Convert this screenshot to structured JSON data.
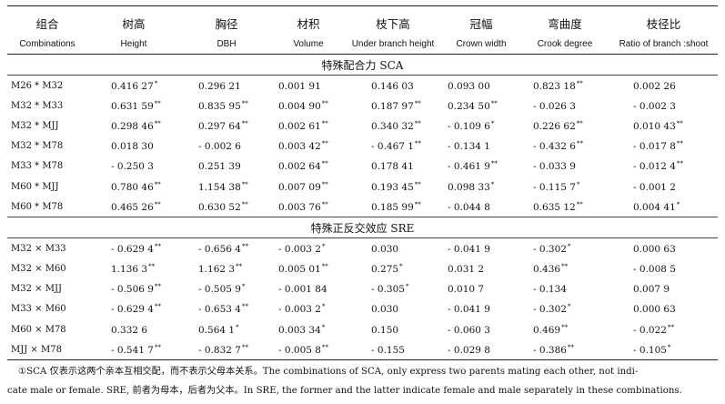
{
  "headers_zh": [
    "组合",
    "树高",
    "胸径",
    "材积",
    "枝下高",
    "冠幅",
    "弯曲度",
    "枝径比"
  ],
  "headers_en": [
    "Combinations",
    "Height",
    "DBH",
    "Volume",
    "Under branch height",
    "Crown width",
    "Crook degree",
    "Ratio of branch :shoot"
  ],
  "sca_title": "特殊配合力 SCA",
  "sre_title": "特殊正反交效应 SRE",
  "sca_rows": [
    {
      "label": "M26 * M32",
      "cells": [
        [
          "0.416 27",
          "*"
        ],
        [
          "0.296 21",
          ""
        ],
        [
          "0.001 91",
          ""
        ],
        [
          "0.146 03",
          ""
        ],
        [
          "0.093 00",
          ""
        ],
        [
          "0.823 18",
          "**"
        ],
        [
          "0.002 26",
          ""
        ]
      ]
    },
    {
      "label": "M32 * M33",
      "cells": [
        [
          "0.631 59",
          "**"
        ],
        [
          "0.835 95",
          "**"
        ],
        [
          "0.004 90",
          "**"
        ],
        [
          "0.187 97",
          "**"
        ],
        [
          "0.234 50",
          "**"
        ],
        [
          "- 0.026 3",
          ""
        ],
        [
          "- 0.002 3",
          ""
        ]
      ]
    },
    {
      "label": "M32 * MJJ",
      "cells": [
        [
          "0.298 46",
          "**"
        ],
        [
          "0.297 64",
          "**"
        ],
        [
          "0.002 61",
          "**"
        ],
        [
          "0.340 32",
          "**"
        ],
        [
          "- 0.109 6",
          "*"
        ],
        [
          "0.226 62",
          "**"
        ],
        [
          "0.010 43",
          "**"
        ]
      ]
    },
    {
      "label": "M32 * M78",
      "cells": [
        [
          "0.018 30",
          ""
        ],
        [
          "- 0.002 6",
          ""
        ],
        [
          "0.003 42",
          "**"
        ],
        [
          "- 0.467 1",
          "**"
        ],
        [
          "- 0.134 1",
          ""
        ],
        [
          "- 0.432 6",
          "**"
        ],
        [
          "- 0.017 8",
          "**"
        ]
      ]
    },
    {
      "label": "M33 * M78",
      "cells": [
        [
          "- 0.250 3",
          ""
        ],
        [
          "0.251 39",
          ""
        ],
        [
          "0.002 64",
          "**"
        ],
        [
          "0.178 41",
          ""
        ],
        [
          "- 0.461 9",
          "**"
        ],
        [
          "- 0.033 9",
          ""
        ],
        [
          "- 0.012 4",
          "**"
        ]
      ]
    },
    {
      "label": "M60 * MJJ",
      "cells": [
        [
          "0.780 46",
          "**"
        ],
        [
          "1.154 38",
          "**"
        ],
        [
          "0.007 09",
          "**"
        ],
        [
          "0.193 45",
          "**"
        ],
        [
          "0.098 33",
          "*"
        ],
        [
          "- 0.115 7",
          "*"
        ],
        [
          "- 0.001 2",
          ""
        ]
      ]
    },
    {
      "label": "M60 * M78",
      "cells": [
        [
          "0.465 26",
          "**"
        ],
        [
          "0.630 52",
          "**"
        ],
        [
          "0.003 76",
          "**"
        ],
        [
          "0.185 99",
          "**"
        ],
        [
          "- 0.044 8",
          ""
        ],
        [
          "0.635 12",
          "**"
        ],
        [
          "0.004 41",
          "*"
        ]
      ]
    }
  ],
  "sre_rows": [
    {
      "label": "M32 × M33",
      "cells": [
        [
          "- 0.629 4",
          "**"
        ],
        [
          "- 0.656 4",
          "**"
        ],
        [
          "- 0.003 2",
          "*"
        ],
        [
          "0.030",
          ""
        ],
        [
          "- 0.041 9",
          ""
        ],
        [
          "- 0.302",
          "*"
        ],
        [
          "0.000 63",
          ""
        ]
      ]
    },
    {
      "label": "M32 × M60",
      "cells": [
        [
          "1.136 3",
          "**"
        ],
        [
          "1.162 3",
          "**"
        ],
        [
          "0.005 01",
          "**"
        ],
        [
          "0.275",
          "*"
        ],
        [
          "0.031 2",
          ""
        ],
        [
          "0.436",
          "**"
        ],
        [
          "- 0.008 5",
          ""
        ]
      ]
    },
    {
      "label": "M32 × MJJ",
      "cells": [
        [
          "- 0.506 9",
          "**"
        ],
        [
          "- 0.505 9",
          "*"
        ],
        [
          "- 0.001 84",
          ""
        ],
        [
          "- 0.305",
          "*"
        ],
        [
          "0.010 7",
          ""
        ],
        [
          "- 0.134",
          ""
        ],
        [
          "0.007 9",
          ""
        ]
      ]
    },
    {
      "label": "M33 × M60",
      "cells": [
        [
          "- 0.629 4",
          "**"
        ],
        [
          "- 0.653 4",
          "**"
        ],
        [
          "- 0.003 2",
          "*"
        ],
        [
          "0.030",
          ""
        ],
        [
          "- 0.041 9",
          ""
        ],
        [
          "- 0.302",
          "*"
        ],
        [
          "0.000 63",
          ""
        ]
      ]
    },
    {
      "label": "M60 × M78",
      "cells": [
        [
          "0.332 6",
          ""
        ],
        [
          "0.564 1",
          "*"
        ],
        [
          "0.003 34",
          "*"
        ],
        [
          "0.150",
          ""
        ],
        [
          "- 0.060 3",
          ""
        ],
        [
          "0.469",
          "**"
        ],
        [
          "- 0.022",
          "**"
        ]
      ]
    },
    {
      "label": "MJJ × M78",
      "cells": [
        [
          "- 0.541 7",
          "**"
        ],
        [
          "- 0.832 7",
          "**"
        ],
        [
          "- 0.005 8",
          "**"
        ],
        [
          "- 0.155",
          ""
        ],
        [
          "- 0.029 8",
          ""
        ],
        [
          "- 0.386",
          "**"
        ],
        [
          "- 0.105",
          "*"
        ]
      ]
    }
  ],
  "footnote": {
    "line1": "①SCA 仅表示这两个亲本互相交配，而不表示父母本关系。The combinations of SCA, only express two parents mating each other, not indi-",
    "line2": "cate male or female. SRE, 前者为母本，后者为父本。In SRE, the former and the latter indicate female and male separately in these combinations."
  }
}
